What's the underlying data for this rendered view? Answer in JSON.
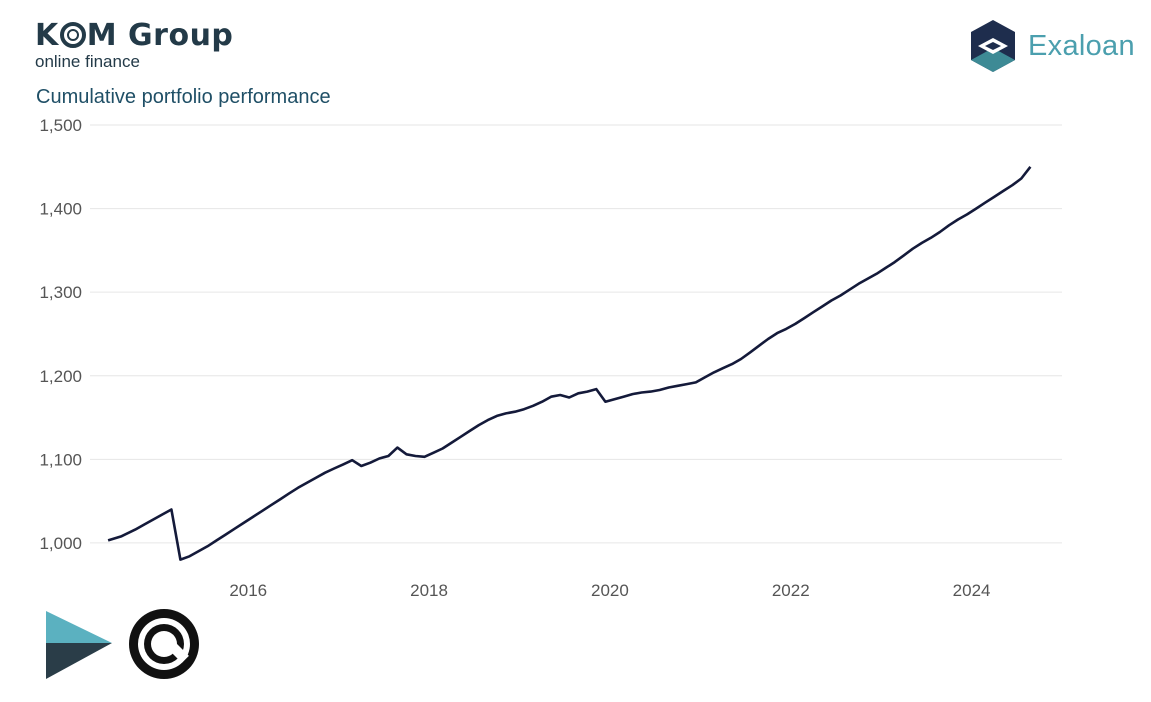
{
  "header": {
    "brand_name": "KOM Group",
    "brand_name_left": "K",
    "brand_name_right": "M Group",
    "brand_tagline": "online finance",
    "partner_name": "Exaloan"
  },
  "colors": {
    "line": "#141a3a",
    "grid": "#e6e6e6",
    "title": "#1f4f66",
    "kom_brand": "#233a48",
    "exaloan_teal": "#4b9fae"
  },
  "icons": [
    "kom-logo",
    "exaloan-hexagon-icon",
    "arrow-logo-icon",
    "circle-logo-icon"
  ],
  "chart_data": {
    "type": "line",
    "title": "Cumulative portfolio performance",
    "xlabel": "",
    "ylabel": "",
    "xlim": [
      2014.25,
      2025.0
    ],
    "ylim": [
      970,
      1500
    ],
    "grid": true,
    "legend": "none",
    "y_ticks": [
      1000,
      1100,
      1200,
      1300,
      1400,
      1500
    ],
    "y_tick_labels": [
      "1,000",
      "1,100",
      "1,200",
      "1,300",
      "1,400",
      "1,500"
    ],
    "x_ticks": [
      2016,
      2018,
      2020,
      2022,
      2024
    ],
    "x_tick_labels": [
      "2016",
      "2018",
      "2020",
      "2022",
      "2024"
    ],
    "series": [
      {
        "x": [
          2014.45,
          2014.6,
          2014.75,
          2014.85,
          2014.95,
          2015.05,
          2015.15,
          2015.25,
          2015.35,
          2015.45,
          2015.55,
          2015.65,
          2015.75,
          2015.85,
          2015.95,
          2016.05,
          2016.15,
          2016.25,
          2016.35,
          2016.45,
          2016.55,
          2016.65,
          2016.75,
          2016.85,
          2016.95,
          2017.05,
          2017.15,
          2017.25,
          2017.35,
          2017.45,
          2017.55,
          2017.65,
          2017.75,
          2017.85,
          2017.95,
          2018.05,
          2018.15,
          2018.25,
          2018.35,
          2018.45,
          2018.55,
          2018.65,
          2018.75,
          2018.85,
          2018.95,
          2019.05,
          2019.15,
          2019.25,
          2019.35,
          2019.45,
          2019.55,
          2019.65,
          2019.75,
          2019.85,
          2019.95,
          2020.05,
          2020.15,
          2020.25,
          2020.35,
          2020.45,
          2020.55,
          2020.65,
          2020.75,
          2020.85,
          2020.95,
          2021.05,
          2021.15,
          2021.25,
          2021.35,
          2021.45,
          2021.55,
          2021.65,
          2021.75,
          2021.85,
          2021.95,
          2022.05,
          2022.15,
          2022.25,
          2022.35,
          2022.45,
          2022.55,
          2022.65,
          2022.75,
          2022.85,
          2022.95,
          2023.05,
          2023.15,
          2023.25,
          2023.35,
          2023.45,
          2023.55,
          2023.65,
          2023.75,
          2023.85,
          2023.95,
          2024.05,
          2024.15,
          2024.25,
          2024.35,
          2024.45,
          2024.55,
          2024.65
        ],
        "values": [
          1003,
          1008,
          1016,
          1022,
          1028,
          1034,
          1040,
          980,
          984,
          990,
          996,
          1003,
          1010,
          1017,
          1024,
          1031,
          1038,
          1045,
          1052,
          1059,
          1066,
          1072,
          1078,
          1084,
          1089,
          1094,
          1099,
          1092,
          1096,
          1101,
          1104,
          1114,
          1106,
          1104,
          1103,
          1108,
          1113,
          1120,
          1127,
          1134,
          1141,
          1147,
          1152,
          1155,
          1157,
          1160,
          1164,
          1169,
          1175,
          1177,
          1174,
          1179,
          1181,
          1184,
          1169,
          1172,
          1175,
          1178,
          1180,
          1181,
          1183,
          1186,
          1188,
          1190,
          1192,
          1198,
          1204,
          1209,
          1214,
          1220,
          1228,
          1236,
          1244,
          1251,
          1256,
          1262,
          1269,
          1276,
          1283,
          1290,
          1296,
          1303,
          1310,
          1316,
          1322,
          1329,
          1336,
          1344,
          1352,
          1359,
          1365,
          1372,
          1380,
          1387,
          1393,
          1400,
          1407,
          1414,
          1421,
          1428,
          1436,
          1450
        ]
      }
    ]
  }
}
